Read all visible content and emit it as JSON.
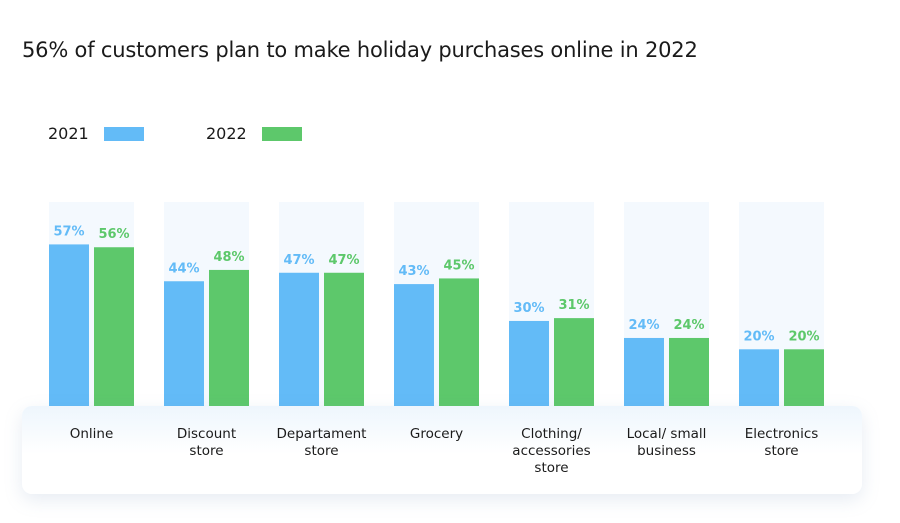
{
  "chart_data": {
    "type": "bar",
    "title": "56% of customers plan to make holiday purchases online in 2022",
    "categories": [
      "Online",
      "Discount\nstore",
      "Departament\nstore",
      "Grocery",
      "Clothing/\naccessories\nstore",
      "Local/ small\nbusiness",
      "Electronics\nstore"
    ],
    "series": [
      {
        "name": "2021",
        "color": "#63bbf7",
        "values": [
          57,
          44,
          47,
          43,
          30,
          24,
          20
        ]
      },
      {
        "name": "2022",
        "color": "#5dc86b",
        "values": [
          56,
          48,
          47,
          45,
          31,
          24,
          20
        ]
      }
    ],
    "value_suffix": "%",
    "ylim": [
      0,
      80
    ],
    "legend_position": "top-left",
    "grid": false
  }
}
